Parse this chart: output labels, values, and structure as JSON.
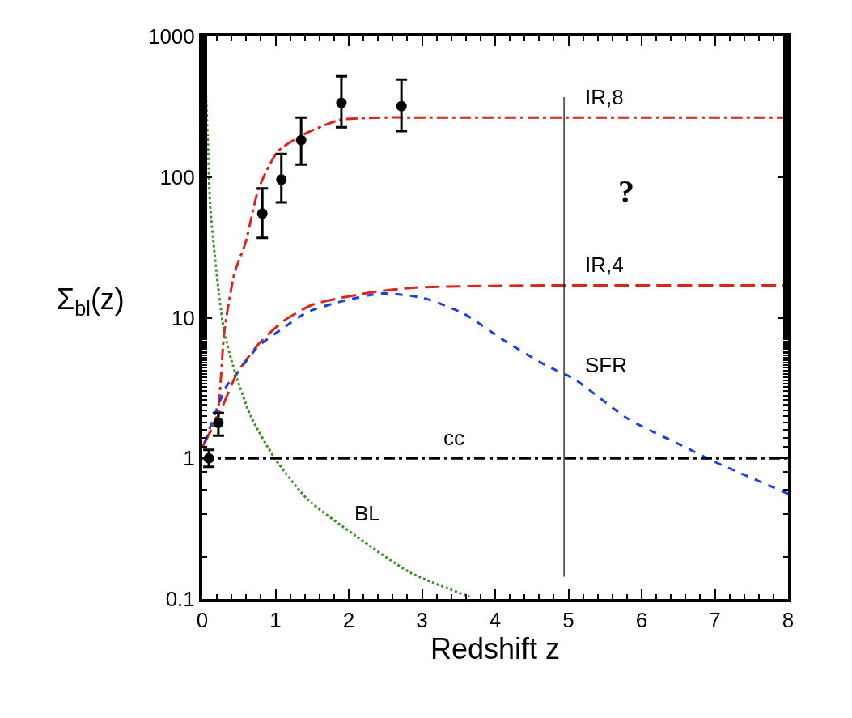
{
  "chart_data": {
    "type": "line",
    "xlabel": "Redshift z",
    "ylabel": "Σ$_{bl}$(z)",
    "log": "y",
    "xlim": [
      0,
      8
    ],
    "xticks": [
      0,
      1,
      2,
      3,
      4,
      5,
      6,
      7,
      8
    ],
    "ylim": [
      0.1,
      1000
    ],
    "yticks": [
      0.1,
      1,
      10,
      100,
      1000
    ],
    "legend": false,
    "series": [
      {
        "name": "IR,8",
        "color": "#d9261c",
        "line_style": "dashdot",
        "x": [
          0,
          0.2,
          0.3,
          0.44,
          0.59,
          0.77,
          1.03,
          1.36,
          1.88,
          2.5,
          3,
          4,
          5,
          6,
          7,
          8
        ],
        "values": [
          1.2,
          2.0,
          7.9,
          20.8,
          34,
          83,
          152,
          198,
          255,
          265,
          265,
          265,
          265,
          265,
          265,
          265
        ]
      },
      {
        "name": "IR,4",
        "color": "#d9261c",
        "line_style": "longdash",
        "x": [
          0.03,
          0.25,
          0.48,
          0.77,
          1.1,
          1.51,
          2.29,
          2.91,
          3.76,
          5,
          6,
          7,
          8
        ],
        "values": [
          1.29,
          2.18,
          4.07,
          6.5,
          9.4,
          12.4,
          15.1,
          16.4,
          16.8,
          17,
          17,
          17,
          17
        ]
      },
      {
        "name": "SFR",
        "color": "#1f3fd6",
        "line_style": "dashed",
        "x": [
          0.03,
          0.22,
          0.33,
          0.48,
          0.77,
          1.07,
          1.44,
          1.91,
          2.46,
          3.02,
          3.57,
          4.12,
          4.67,
          5.08,
          5.82,
          6.54,
          6.97,
          8
        ],
        "values": [
          1.29,
          2.4,
          3.25,
          4.07,
          6.3,
          8.2,
          11.0,
          13.1,
          14.9,
          13.8,
          10.7,
          6.9,
          4.65,
          3.66,
          1.9,
          1.24,
          0.96,
          0.56
        ]
      },
      {
        "name": "BL",
        "color": "#3a8f2a",
        "line_style": "dotted",
        "x": [
          0.02,
          0.08,
          0.11,
          0.22,
          0.3,
          0.44,
          0.66,
          0.99,
          1.44,
          2.1,
          2.84,
          3.65
        ],
        "values": [
          1000,
          150,
          60,
          16,
          7.9,
          4.2,
          2.0,
          1.0,
          0.51,
          0.28,
          0.154,
          0.104
        ]
      },
      {
        "color": "#000000",
        "line_style": "solid",
        "x": [
          4.94,
          4.94
        ],
        "values": [
          0.144,
          370
        ]
      },
      {
        "type": "scatter",
        "color": "#000000",
        "marker": "circle",
        "x": [
          0.09,
          0.22,
          0.82,
          1.08,
          1.35,
          1.9,
          2.72
        ],
        "values": [
          1.0,
          1.79,
          55,
          96,
          183,
          337,
          319
        ],
        "errors": [
          [
            0.87,
            1.15
          ],
          [
            1.45,
            2.1
          ],
          [
            37,
            83
          ],
          [
            66,
            146
          ],
          [
            123,
            265
          ],
          [
            226,
            521
          ],
          [
            212,
            494
          ]
        ]
      }
    ],
    "ref_lines": [
      {
        "axis": "y",
        "value": 1,
        "label": "cc",
        "color": "#000000",
        "line_style": "dashdot"
      }
    ],
    "annotations": [
      "?"
    ]
  }
}
